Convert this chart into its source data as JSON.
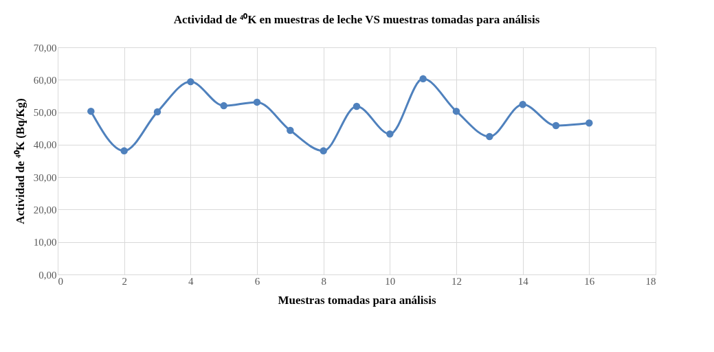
{
  "chart_data": {
    "type": "line",
    "title": "Actividad de ⁴⁰K en muestras de leche VS muestras tomadas para análisis",
    "xlabel": "Muestras tomadas para análisis",
    "ylabel": "Actividad de ⁴⁰K (Bq/Kg)",
    "x": [
      1,
      2,
      3,
      4,
      5,
      6,
      7,
      8,
      9,
      10,
      11,
      12,
      13,
      14,
      15,
      16
    ],
    "series": [
      {
        "color": "#4f81bd",
        "values": [
          50.3,
          38.1,
          50.1,
          59.4,
          52.0,
          53.1,
          44.4,
          38.1,
          51.8,
          43.3,
          60.3,
          50.3,
          42.5,
          52.4,
          45.9,
          46.7
        ]
      }
    ],
    "xlim": [
      0,
      18
    ],
    "xticks": [
      0,
      2,
      4,
      6,
      8,
      10,
      12,
      14,
      16,
      18
    ],
    "ylim": [
      0,
      70
    ],
    "yticks": [
      {
        "value": 0,
        "label": "0,00"
      },
      {
        "value": 10,
        "label": "10,00"
      },
      {
        "value": 20,
        "label": "20,00"
      },
      {
        "value": 30,
        "label": "30,00"
      },
      {
        "value": 40,
        "label": "40,00"
      },
      {
        "value": 50,
        "label": "50,00"
      },
      {
        "value": 60,
        "label": "60,00"
      },
      {
        "value": 70,
        "label": "70,00"
      }
    ],
    "grid": true,
    "marker": "circle",
    "line_style": "solid",
    "legend": false
  }
}
